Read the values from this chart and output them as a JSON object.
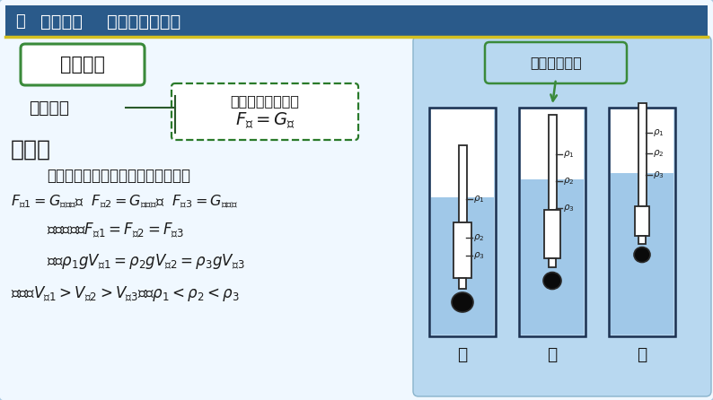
{
  "bg_outer": "#a8c8e0",
  "bg_left": "#f0f8ff",
  "bg_right": "#b8d8f0",
  "header_bg": "#2a5a8a",
  "header_line_color": "#d4c020",
  "header_text": "新知探究    制作微型密度计",
  "section_label": "项目分析",
  "measure_principle": "测量原理",
  "float_box_title": "物体的漂浮条件：",
  "float_box_formula": "$F_{浮}=G_{物}$",
  "analysis_header": "分析：",
  "text_line1": "密度计在三种液体中都漂浮，所以，",
  "text_line2a": "$F_{浮1}=G_{密度计}$，",
  "text_line2b": "  $F_{浮2}=G_{密度计}$，",
  "text_line2c": "  $F_{浮3}=G_{密度计}$",
  "text_line3": "可以得到：$F_{浮1}=F_{浮2}=F_{浮3}$",
  "text_line4": "即：$\\rho_1 g V_{排1}=\\rho_2 g V_{排2}=\\rho_3 g V_{排3}$",
  "text_line5": "由图知$V_{排1}>V_{排2}>V_{排3}$，故$\\rho_1<\\rho_2<\\rho_3$",
  "same_label": "同一支密度计",
  "jar_labels": [
    "甲",
    "乙",
    "丙"
  ],
  "liquid_color": "#a0c8e8",
  "liquid_alpha": 1.0,
  "jar_edge": "#1a3050",
  "bulb_color": "#0a0a0a",
  "rho1": "$\\rho_1$",
  "rho2": "$\\rho_2$",
  "rho3": "$\\rho_3$",
  "green_box": "#3a8a3a",
  "dashed_green": "#2a7a2a",
  "text_color": "#1a1a1a",
  "white": "#ffffff"
}
